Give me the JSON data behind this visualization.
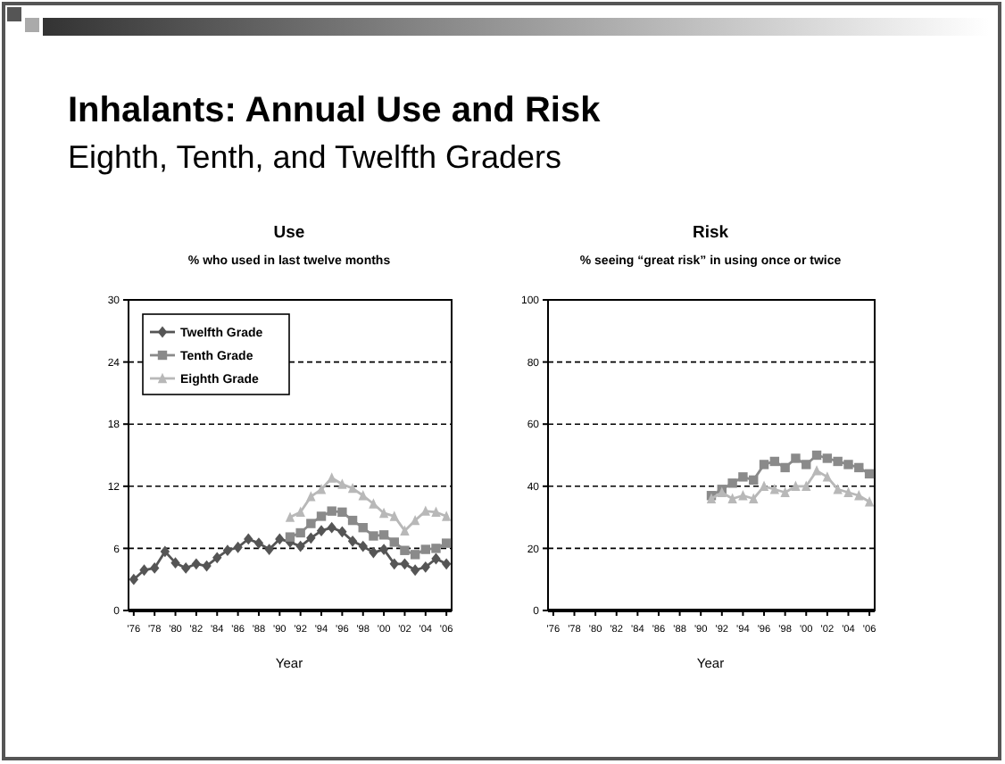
{
  "chart_data": [
    {
      "type": "line",
      "title": "Use",
      "subtitle": "% who used in last twelve months",
      "xlabel": "Year",
      "annotations": [
        "Inhalants: Annual Use and Risk",
        "Eighth, Tenth, and Twelfth Graders"
      ],
      "xlim": [
        1975.5,
        2006.5
      ],
      "xticks": [
        {
          "value": 1976,
          "label": "'76"
        },
        {
          "value": 1978,
          "label": "'78"
        },
        {
          "value": 1980,
          "label": "'80"
        },
        {
          "value": 1982,
          "label": "'82"
        },
        {
          "value": 1984,
          "label": "'84"
        },
        {
          "value": 1986,
          "label": "'86"
        },
        {
          "value": 1988,
          "label": "'88"
        },
        {
          "value": 1990,
          "label": "'90"
        },
        {
          "value": 1992,
          "label": "'92"
        },
        {
          "value": 1994,
          "label": "'94"
        },
        {
          "value": 1996,
          "label": "'96"
        },
        {
          "value": 1998,
          "label": "'98"
        },
        {
          "value": 2000,
          "label": "'00"
        },
        {
          "value": 2002,
          "label": "'02"
        },
        {
          "value": 2004,
          "label": "'04"
        },
        {
          "value": 2006,
          "label": "'06"
        }
      ],
      "ylim": [
        0,
        30
      ],
      "yticks": [
        0,
        6,
        12,
        18,
        24,
        30
      ],
      "grid": "y",
      "legend": "top left",
      "series": [
        {
          "name": "Twelfth Grade",
          "color": "#555555",
          "marker": "diamond",
          "x": [
            1976,
            1977,
            1978,
            1979,
            1980,
            1981,
            1982,
            1983,
            1984,
            1985,
            1986,
            1987,
            1988,
            1989,
            1990,
            1991,
            1992,
            1993,
            1994,
            1995,
            1996,
            1997,
            1998,
            1999,
            2000,
            2001,
            2002,
            2003,
            2004,
            2005,
            2006
          ],
          "values": [
            3.0,
            3.9,
            4.1,
            5.7,
            4.6,
            4.1,
            4.5,
            4.3,
            5.1,
            5.8,
            6.1,
            6.9,
            6.5,
            5.9,
            6.9,
            6.6,
            6.2,
            7.0,
            7.7,
            8.0,
            7.6,
            6.7,
            6.2,
            5.6,
            5.9,
            4.5,
            4.5,
            3.9,
            4.2,
            5.0,
            4.5
          ]
        },
        {
          "name": "Tenth Grade",
          "color": "#8a8a8a",
          "marker": "square",
          "x": [
            1991,
            1992,
            1993,
            1994,
            1995,
            1996,
            1997,
            1998,
            1999,
            2000,
            2001,
            2002,
            2003,
            2004,
            2005,
            2006
          ],
          "values": [
            7.1,
            7.5,
            8.4,
            9.1,
            9.6,
            9.5,
            8.7,
            8.0,
            7.2,
            7.3,
            6.6,
            5.8,
            5.4,
            5.9,
            6.0,
            6.5
          ]
        },
        {
          "name": "Eighth Grade",
          "color": "#b8b8b8",
          "marker": "triangle",
          "x": [
            1991,
            1992,
            1993,
            1994,
            1995,
            1996,
            1997,
            1998,
            1999,
            2000,
            2001,
            2002,
            2003,
            2004,
            2005,
            2006
          ],
          "values": [
            9.0,
            9.5,
            11.0,
            11.7,
            12.8,
            12.2,
            11.8,
            11.1,
            10.3,
            9.4,
            9.1,
            7.7,
            8.7,
            9.6,
            9.5,
            9.1
          ]
        }
      ]
    },
    {
      "type": "line",
      "title": "Risk",
      "subtitle": "% seeing “great risk” in using once or twice",
      "xlabel": "Year",
      "xlim": [
        1975.5,
        2006.5
      ],
      "xticks": [
        {
          "value": 1976,
          "label": "'76"
        },
        {
          "value": 1978,
          "label": "'78"
        },
        {
          "value": 1980,
          "label": "'80"
        },
        {
          "value": 1982,
          "label": "'82"
        },
        {
          "value": 1984,
          "label": "'84"
        },
        {
          "value": 1986,
          "label": "'86"
        },
        {
          "value": 1988,
          "label": "'88"
        },
        {
          "value": 1990,
          "label": "'90"
        },
        {
          "value": 1992,
          "label": "'92"
        },
        {
          "value": 1994,
          "label": "'94"
        },
        {
          "value": 1996,
          "label": "'96"
        },
        {
          "value": 1998,
          "label": "'98"
        },
        {
          "value": 2000,
          "label": "'00"
        },
        {
          "value": 2002,
          "label": "'02"
        },
        {
          "value": 2004,
          "label": "'04"
        },
        {
          "value": 2006,
          "label": "'06"
        }
      ],
      "ylim": [
        0,
        100
      ],
      "yticks": [
        0,
        20,
        40,
        60,
        80,
        100
      ],
      "grid": "y",
      "series": [
        {
          "color": "#8a8a8a",
          "marker": "square",
          "x": [
            1991,
            1992,
            1993,
            1994,
            1995,
            1996,
            1997,
            1998,
            1999,
            2000,
            2001,
            2002,
            2003,
            2004,
            2005,
            2006
          ],
          "values": [
            37,
            39,
            41,
            43,
            42,
            47,
            48,
            46,
            49,
            47,
            50,
            49,
            48,
            47,
            46,
            44
          ]
        },
        {
          "color": "#b8b8b8",
          "marker": "triangle",
          "x": [
            1991,
            1992,
            1993,
            1994,
            1995,
            1996,
            1997,
            1998,
            1999,
            2000,
            2001,
            2002,
            2003,
            2004,
            2005,
            2006
          ],
          "values": [
            36,
            38,
            36,
            37,
            36,
            40,
            39,
            38,
            40,
            40,
            45,
            43,
            39,
            38,
            37,
            35
          ]
        }
      ]
    }
  ]
}
